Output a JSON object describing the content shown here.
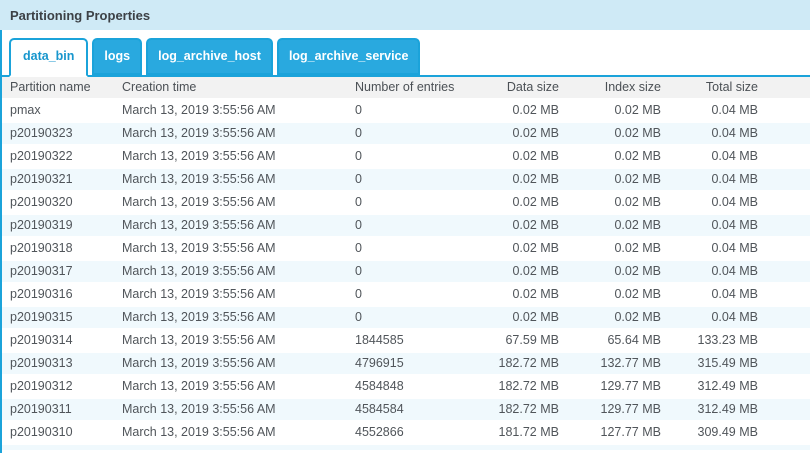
{
  "panel": {
    "title": "Partitioning Properties"
  },
  "tabs": [
    {
      "label": "data_bin",
      "active": true
    },
    {
      "label": "logs",
      "active": false
    },
    {
      "label": "log_archive_host",
      "active": false
    },
    {
      "label": "log_archive_service",
      "active": false
    }
  ],
  "table": {
    "columns": [
      "Partition name",
      "Creation time",
      "Number of entries",
      "Data size",
      "Index size",
      "Total size"
    ],
    "rows": [
      [
        "pmax",
        "March 13, 2019 3:55:56 AM",
        "0",
        "0.02 MB",
        "0.02 MB",
        "0.04 MB"
      ],
      [
        "p20190323",
        "March 13, 2019 3:55:56 AM",
        "0",
        "0.02 MB",
        "0.02 MB",
        "0.04 MB"
      ],
      [
        "p20190322",
        "March 13, 2019 3:55:56 AM",
        "0",
        "0.02 MB",
        "0.02 MB",
        "0.04 MB"
      ],
      [
        "p20190321",
        "March 13, 2019 3:55:56 AM",
        "0",
        "0.02 MB",
        "0.02 MB",
        "0.04 MB"
      ],
      [
        "p20190320",
        "March 13, 2019 3:55:56 AM",
        "0",
        "0.02 MB",
        "0.02 MB",
        "0.04 MB"
      ],
      [
        "p20190319",
        "March 13, 2019 3:55:56 AM",
        "0",
        "0.02 MB",
        "0.02 MB",
        "0.04 MB"
      ],
      [
        "p20190318",
        "March 13, 2019 3:55:56 AM",
        "0",
        "0.02 MB",
        "0.02 MB",
        "0.04 MB"
      ],
      [
        "p20190317",
        "March 13, 2019 3:55:56 AM",
        "0",
        "0.02 MB",
        "0.02 MB",
        "0.04 MB"
      ],
      [
        "p20190316",
        "March 13, 2019 3:55:56 AM",
        "0",
        "0.02 MB",
        "0.02 MB",
        "0.04 MB"
      ],
      [
        "p20190315",
        "March 13, 2019 3:55:56 AM",
        "0",
        "0.02 MB",
        "0.02 MB",
        "0.04 MB"
      ],
      [
        "p20190314",
        "March 13, 2019 3:55:56 AM",
        "1844585",
        "67.59 MB",
        "65.64 MB",
        "133.23 MB"
      ],
      [
        "p20190313",
        "March 13, 2019 3:55:56 AM",
        "4796915",
        "182.72 MB",
        "132.77 MB",
        "315.49 MB"
      ],
      [
        "p20190312",
        "March 13, 2019 3:55:56 AM",
        "4584848",
        "182.72 MB",
        "129.77 MB",
        "312.49 MB"
      ],
      [
        "p20190311",
        "March 13, 2019 3:55:56 AM",
        "4584584",
        "182.72 MB",
        "129.77 MB",
        "312.49 MB"
      ],
      [
        "p20190310",
        "March 13, 2019 3:55:56 AM",
        "4552866",
        "181.72 MB",
        "127.77 MB",
        "309.49 MB"
      ]
    ]
  },
  "colors": {
    "accent_blue": "#1ba3da",
    "tab_blue": "#29a9df",
    "title_bar_bg": "#cfeaf6",
    "table_header_bg": "#f2f2f2",
    "alt_row_bg": "#f0f9fd",
    "text": "#50555a"
  }
}
